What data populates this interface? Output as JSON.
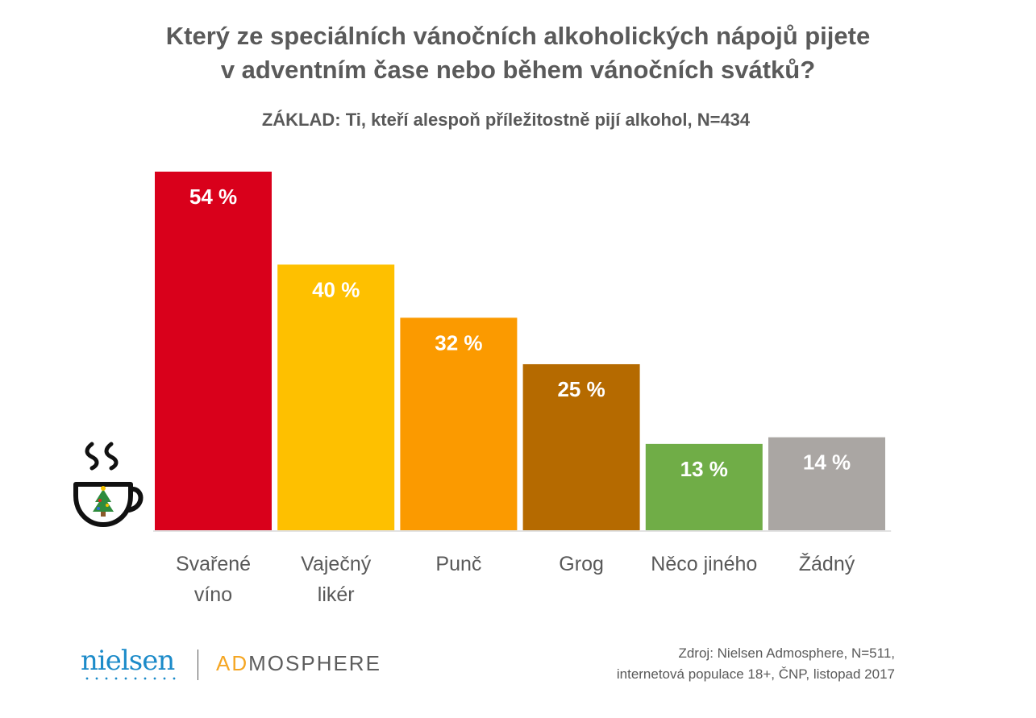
{
  "chart_data": {
    "type": "bar",
    "title_lines": [
      "Který ze speciálních vánočních alkoholických nápojů pijete",
      "v adventním čase nebo během vánočních svátků?"
    ],
    "subtitle": "ZÁKLAD: Ti, kteří alespoň příležitostně pijí alkohol, N=434",
    "categories": [
      [
        "Svařené",
        "víno"
      ],
      [
        "Vaječný",
        "likér"
      ],
      [
        "Punč"
      ],
      [
        "Grog"
      ],
      [
        "Něco jiného"
      ],
      [
        "Žádný"
      ]
    ],
    "values": [
      54,
      40,
      32,
      25,
      13,
      14
    ],
    "value_labels": [
      "54 %",
      "40 %",
      "32 %",
      "25 %",
      "13 %",
      "14 %"
    ],
    "colors": [
      "#d9001b",
      "#fec000",
      "#fb9a00",
      "#b56a00",
      "#70ad47",
      "#aaa6a3"
    ],
    "ylim": [
      0,
      54
    ],
    "grid": false,
    "legend": "none"
  },
  "logo": {
    "nielsen": "nielsen",
    "admosphere_ad": "AD",
    "admosphere_rest": "MOSPHERE"
  },
  "source": {
    "line1": "Zdroj: Nielsen Admosphere, N=511,",
    "line2": "internetová populace 18+, ČNP, listopad 2017"
  },
  "icons": {
    "cup": "christmas-cup-icon"
  }
}
